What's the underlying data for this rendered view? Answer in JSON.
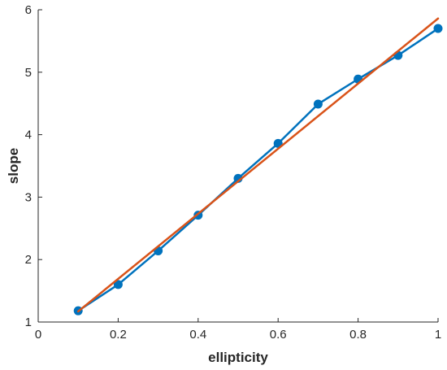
{
  "chart_data": {
    "type": "line",
    "xlabel": "ellipticity",
    "ylabel": "slope",
    "xlim": [
      0,
      1
    ],
    "ylim": [
      1,
      6
    ],
    "x_ticks": [
      "0",
      "0.2",
      "0.4",
      "0.6",
      "0.8",
      "1"
    ],
    "y_ticks": [
      "1",
      "2",
      "3",
      "4",
      "5",
      "6"
    ],
    "grid": false,
    "series": [
      {
        "style": "line-with-markers",
        "color": "#0072BD",
        "x": [
          0.1,
          0.2,
          0.3,
          0.4,
          0.5,
          0.6,
          0.7,
          0.8,
          0.9,
          1.0
        ],
        "y": [
          1.18,
          1.6,
          2.14,
          2.71,
          3.3,
          3.86,
          4.49,
          4.89,
          5.27,
          5.7
        ]
      },
      {
        "style": "line",
        "color": "#D95319",
        "x": [
          0.1,
          1.0
        ],
        "y": [
          1.17,
          5.86
        ]
      }
    ]
  }
}
